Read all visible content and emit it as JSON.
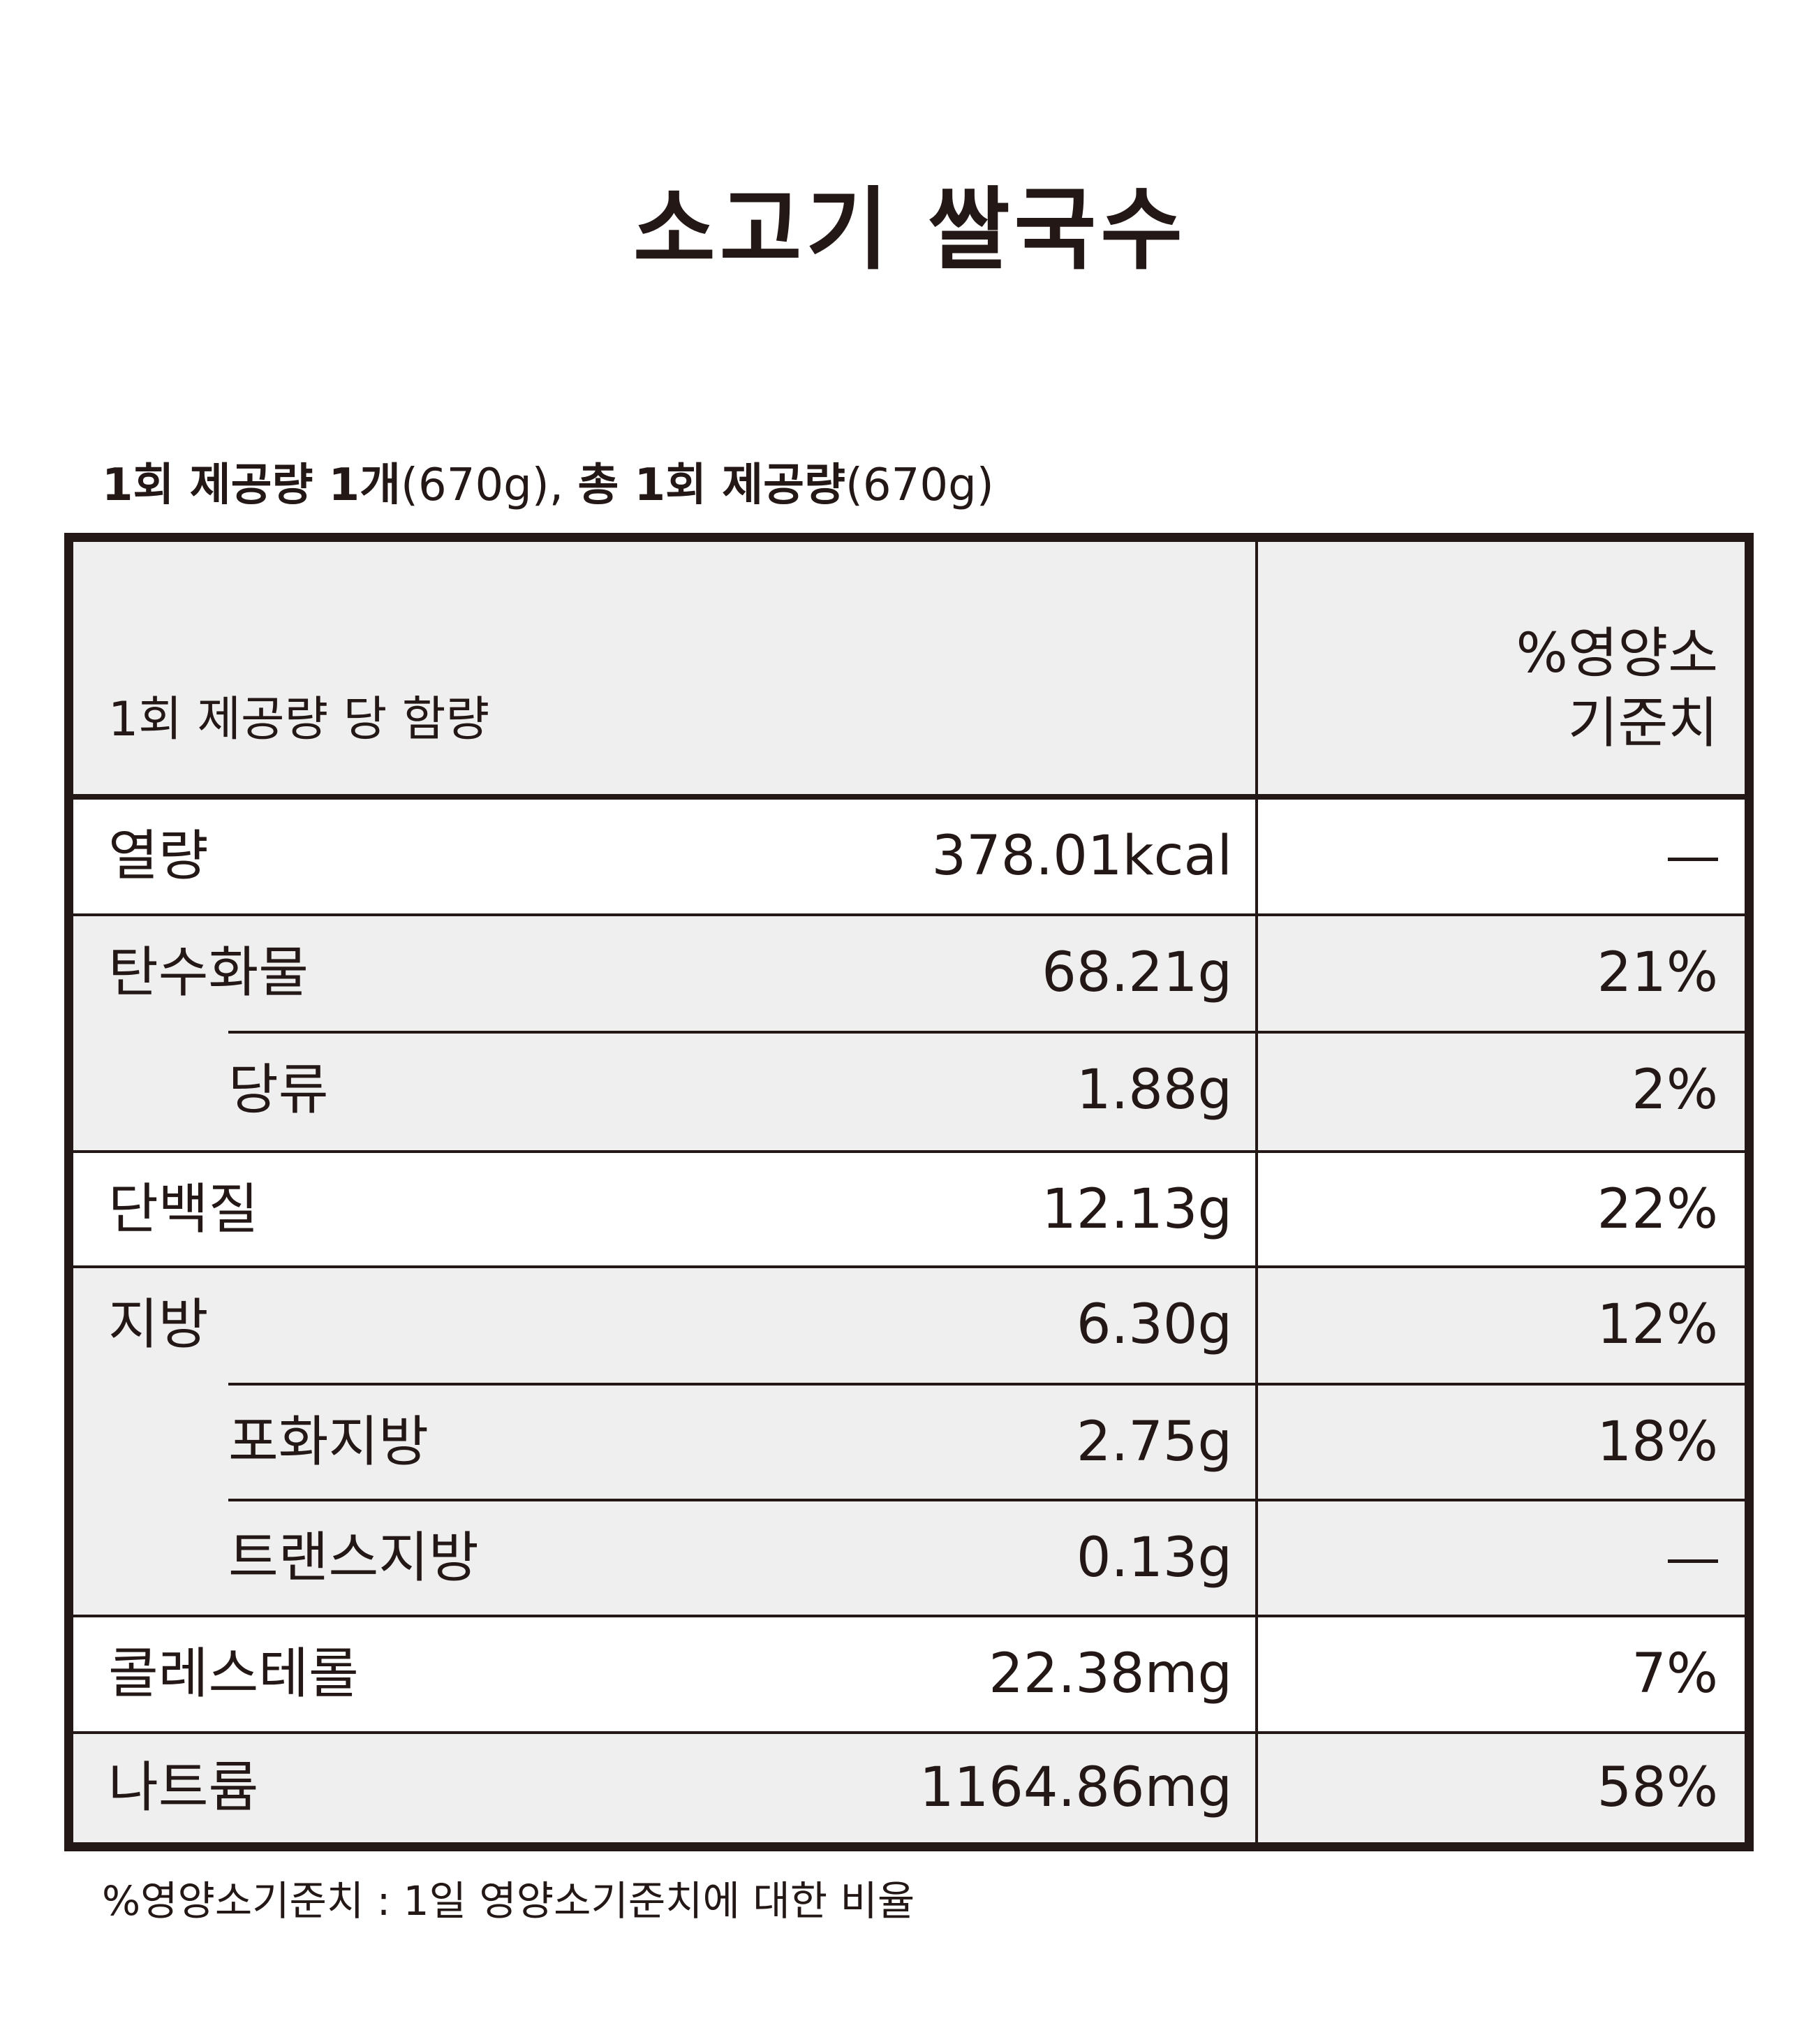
{
  "title": "소고기 쌀국수",
  "serving": {
    "bold1": "1회 제공량 1개",
    "normal1": "(670g), ",
    "bold2": "총 1회 제공량",
    "normal2": "(670g)"
  },
  "header": {
    "left": "1회 제공량 당 함량",
    "right_line1": "%영양소",
    "right_line2": "기준치"
  },
  "rows": [
    {
      "label": "열량",
      "amount": "378.01kcal",
      "percent": "—"
    },
    {
      "label": "탄수화물",
      "amount": "68.21g",
      "percent": "21%"
    },
    {
      "label": "당류",
      "amount": "1.88g",
      "percent": "2%"
    },
    {
      "label": "단백질",
      "amount": "12.13g",
      "percent": "22%"
    },
    {
      "label": "지방",
      "amount": "6.30g",
      "percent": "12%"
    },
    {
      "label": "포화지방",
      "amount": "2.75g",
      "percent": "18%"
    },
    {
      "label": "트랜스지방",
      "amount": "0.13g",
      "percent": "—"
    },
    {
      "label": "콜레스테롤",
      "amount": "22.38mg",
      "percent": "7%"
    },
    {
      "label": "나트륨",
      "amount": "1164.86mg",
      "percent": "58%"
    }
  ],
  "footnote": "%영양소기준치 : 1일 영양소기준치에 대한 비율",
  "colors": {
    "text": "#231815",
    "row_gray": "#efefef",
    "row_white": "#ffffff"
  }
}
